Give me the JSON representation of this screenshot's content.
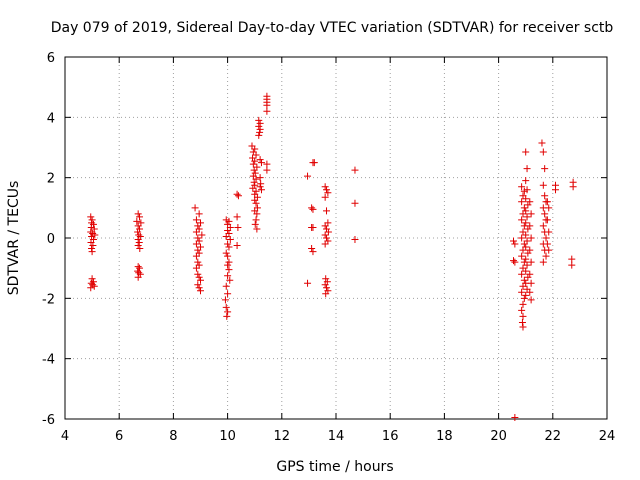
{
  "chart_data": {
    "type": "scatter",
    "title": "Day 079 of 2019, Sidereal Day-to-day VTEC variation (SDTVAR) for receiver sctb",
    "xlabel": "GPS time / hours",
    "ylabel": "SDTVAR / TECUs",
    "xlim": [
      4,
      24
    ],
    "ylim": [
      -6,
      6
    ],
    "xticks": [
      "4",
      "6",
      "8",
      "10",
      "12",
      "14",
      "16",
      "18",
      "20",
      "22",
      "24"
    ],
    "yticks": [
      "-6",
      "-4",
      "-2",
      "0",
      "2",
      "4",
      "6"
    ],
    "grid": true,
    "marker": "+",
    "color": "#e00000",
    "series": [
      {
        "name": "SDTVAR",
        "points": [
          [
            4.95,
            0.7
          ],
          [
            5.0,
            0.6
          ],
          [
            4.98,
            0.5
          ],
          [
            5.05,
            0.45
          ],
          [
            4.97,
            0.35
          ],
          [
            5.08,
            0.3
          ],
          [
            4.95,
            0.2
          ],
          [
            5.02,
            0.15
          ],
          [
            5.1,
            0.1
          ],
          [
            4.98,
            0.05
          ],
          [
            5.05,
            -0.05
          ],
          [
            4.96,
            -0.15
          ],
          [
            5.03,
            -0.25
          ],
          [
            4.98,
            -0.35
          ],
          [
            5.0,
            -0.45
          ],
          [
            5.0,
            -1.35
          ],
          [
            5.05,
            -1.45
          ],
          [
            4.97,
            -1.5
          ],
          [
            5.02,
            -1.55
          ],
          [
            5.08,
            -1.6
          ],
          [
            4.95,
            -1.65
          ],
          [
            6.7,
            0.8
          ],
          [
            6.75,
            0.7
          ],
          [
            6.65,
            0.55
          ],
          [
            6.8,
            0.5
          ],
          [
            6.7,
            0.4
          ],
          [
            6.75,
            0.3
          ],
          [
            6.68,
            0.2
          ],
          [
            6.72,
            0.1
          ],
          [
            6.78,
            0.05
          ],
          [
            6.7,
            -0.05
          ],
          [
            6.74,
            -0.15
          ],
          [
            6.7,
            -0.25
          ],
          [
            6.76,
            -0.35
          ],
          [
            6.7,
            -0.95
          ],
          [
            6.75,
            -1.0
          ],
          [
            6.68,
            -1.1
          ],
          [
            6.72,
            -1.15
          ],
          [
            6.78,
            -1.2
          ],
          [
            6.7,
            -1.3
          ],
          [
            8.8,
            1.0
          ],
          [
            8.95,
            0.8
          ],
          [
            8.85,
            0.6
          ],
          [
            9.0,
            0.5
          ],
          [
            8.9,
            0.4
          ],
          [
            8.95,
            0.3
          ],
          [
            8.85,
            0.2
          ],
          [
            9.05,
            0.1
          ],
          [
            8.9,
            0.0
          ],
          [
            8.95,
            -0.1
          ],
          [
            8.85,
            -0.2
          ],
          [
            9.0,
            -0.3
          ],
          [
            8.9,
            -0.4
          ],
          [
            8.95,
            -0.5
          ],
          [
            8.85,
            -0.6
          ],
          [
            8.9,
            -0.8
          ],
          [
            8.95,
            -0.9
          ],
          [
            8.85,
            -1.0
          ],
          [
            8.9,
            -1.2
          ],
          [
            8.95,
            -1.3
          ],
          [
            9.0,
            -1.4
          ],
          [
            8.9,
            -1.55
          ],
          [
            8.95,
            -1.65
          ],
          [
            9.0,
            -1.75
          ],
          [
            9.95,
            0.6
          ],
          [
            10.05,
            0.55
          ],
          [
            10.0,
            0.45
          ],
          [
            10.1,
            0.35
          ],
          [
            10.0,
            0.25
          ],
          [
            10.05,
            0.15
          ],
          [
            9.95,
            0.05
          ],
          [
            10.1,
            -0.05
          ],
          [
            10.0,
            -0.2
          ],
          [
            10.05,
            -0.3
          ],
          [
            9.95,
            -0.5
          ],
          [
            10.0,
            -0.6
          ],
          [
            10.05,
            -0.8
          ],
          [
            10.0,
            -0.9
          ],
          [
            10.05,
            -1.05
          ],
          [
            10.0,
            -1.25
          ],
          [
            10.08,
            -1.4
          ],
          [
            9.95,
            -1.6
          ],
          [
            10.0,
            -1.85
          ],
          [
            9.92,
            -2.05
          ],
          [
            9.95,
            -2.3
          ],
          [
            10.0,
            -2.45
          ],
          [
            9.97,
            -2.6
          ],
          [
            10.35,
            1.45
          ],
          [
            10.4,
            1.4
          ],
          [
            10.35,
            0.7
          ],
          [
            10.38,
            0.35
          ],
          [
            10.35,
            -0.25
          ],
          [
            10.9,
            3.05
          ],
          [
            11.0,
            2.95
          ],
          [
            10.95,
            2.85
          ],
          [
            11.05,
            2.75
          ],
          [
            10.92,
            2.65
          ],
          [
            11.0,
            2.55
          ],
          [
            10.95,
            2.45
          ],
          [
            11.08,
            2.35
          ],
          [
            10.98,
            2.25
          ],
          [
            11.02,
            2.15
          ],
          [
            10.95,
            2.05
          ],
          [
            11.05,
            1.95
          ],
          [
            10.98,
            1.85
          ],
          [
            11.0,
            1.75
          ],
          [
            10.93,
            1.65
          ],
          [
            11.05,
            1.55
          ],
          [
            11.0,
            1.45
          ],
          [
            11.1,
            1.35
          ],
          [
            11.0,
            1.25
          ],
          [
            11.05,
            1.15
          ],
          [
            11.1,
            1.0
          ],
          [
            11.0,
            0.9
          ],
          [
            11.08,
            0.8
          ],
          [
            11.05,
            0.6
          ],
          [
            11.02,
            0.45
          ],
          [
            11.08,
            0.3
          ],
          [
            11.15,
            3.9
          ],
          [
            11.2,
            3.8
          ],
          [
            11.15,
            3.7
          ],
          [
            11.2,
            3.6
          ],
          [
            11.18,
            3.5
          ],
          [
            11.15,
            3.4
          ],
          [
            11.2,
            2.6
          ],
          [
            11.25,
            2.5
          ],
          [
            11.2,
            2.0
          ],
          [
            11.22,
            1.8
          ],
          [
            11.2,
            1.7
          ],
          [
            11.25,
            1.6
          ],
          [
            11.45,
            4.7
          ],
          [
            11.45,
            4.6
          ],
          [
            11.45,
            4.5
          ],
          [
            11.45,
            4.4
          ],
          [
            11.45,
            4.2
          ],
          [
            11.45,
            2.45
          ],
          [
            11.45,
            2.25
          ],
          [
            12.95,
            2.05
          ],
          [
            13.15,
            2.5
          ],
          [
            13.2,
            2.5
          ],
          [
            13.1,
            1.0
          ],
          [
            13.15,
            0.95
          ],
          [
            13.1,
            0.35
          ],
          [
            13.15,
            0.35
          ],
          [
            13.1,
            -0.35
          ],
          [
            13.15,
            -0.45
          ],
          [
            12.95,
            -1.5
          ],
          [
            13.6,
            1.7
          ],
          [
            13.65,
            1.6
          ],
          [
            13.7,
            1.5
          ],
          [
            13.6,
            1.35
          ],
          [
            13.65,
            0.9
          ],
          [
            13.7,
            0.5
          ],
          [
            13.6,
            0.4
          ],
          [
            13.65,
            0.3
          ],
          [
            13.72,
            0.2
          ],
          [
            13.6,
            0.1
          ],
          [
            13.65,
            0.0
          ],
          [
            13.7,
            -0.1
          ],
          [
            13.6,
            -0.2
          ],
          [
            13.62,
            -1.35
          ],
          [
            13.68,
            -1.45
          ],
          [
            13.6,
            -1.55
          ],
          [
            13.65,
            -1.65
          ],
          [
            13.7,
            -1.75
          ],
          [
            13.62,
            -1.85
          ],
          [
            14.7,
            2.25
          ],
          [
            14.7,
            1.15
          ],
          [
            14.7,
            -0.05
          ],
          [
            20.55,
            -0.1
          ],
          [
            20.6,
            -0.2
          ],
          [
            20.55,
            -0.75
          ],
          [
            20.6,
            -0.8
          ],
          [
            20.6,
            -5.95
          ],
          [
            20.85,
            1.7
          ],
          [
            20.95,
            1.55
          ],
          [
            20.9,
            1.4
          ],
          [
            20.85,
            1.2
          ],
          [
            20.95,
            1.0
          ],
          [
            20.9,
            0.8
          ],
          [
            20.85,
            0.6
          ],
          [
            20.95,
            0.4
          ],
          [
            20.9,
            0.2
          ],
          [
            20.85,
            0.0
          ],
          [
            20.95,
            -0.2
          ],
          [
            20.9,
            -0.4
          ],
          [
            20.85,
            -0.6
          ],
          [
            20.95,
            -0.8
          ],
          [
            20.9,
            -1.0
          ],
          [
            20.85,
            -1.2
          ],
          [
            20.95,
            -1.4
          ],
          [
            20.9,
            -1.6
          ],
          [
            20.85,
            -1.8
          ],
          [
            20.95,
            -2.0
          ],
          [
            20.9,
            -2.2
          ],
          [
            20.85,
            -2.4
          ],
          [
            20.9,
            -2.6
          ],
          [
            20.88,
            -2.8
          ],
          [
            20.9,
            -2.95
          ],
          [
            21.0,
            2.85
          ],
          [
            21.05,
            2.3
          ],
          [
            21.0,
            1.9
          ],
          [
            21.05,
            1.6
          ],
          [
            21.0,
            1.3
          ],
          [
            21.08,
            1.1
          ],
          [
            21.0,
            0.9
          ],
          [
            21.05,
            0.7
          ],
          [
            21.0,
            0.5
          ],
          [
            21.08,
            0.3
          ],
          [
            21.0,
            0.1
          ],
          [
            21.05,
            -0.1
          ],
          [
            21.0,
            -0.3
          ],
          [
            21.08,
            -0.5
          ],
          [
            21.0,
            -0.7
          ],
          [
            21.05,
            -0.9
          ],
          [
            21.0,
            -1.1
          ],
          [
            21.08,
            -1.3
          ],
          [
            21.0,
            -1.5
          ],
          [
            21.05,
            -1.7
          ],
          [
            21.0,
            -1.9
          ],
          [
            21.15,
            1.2
          ],
          [
            21.2,
            0.8
          ],
          [
            21.15,
            0.4
          ],
          [
            21.2,
            0.0
          ],
          [
            21.15,
            -0.4
          ],
          [
            21.2,
            -0.8
          ],
          [
            21.15,
            -1.2
          ],
          [
            21.2,
            -1.5
          ],
          [
            21.15,
            -1.8
          ],
          [
            21.2,
            -2.05
          ],
          [
            21.6,
            3.15
          ],
          [
            21.65,
            2.85
          ],
          [
            21.7,
            2.3
          ],
          [
            21.65,
            1.75
          ],
          [
            21.7,
            1.4
          ],
          [
            21.75,
            1.2
          ],
          [
            21.65,
            1.0
          ],
          [
            21.7,
            0.8
          ],
          [
            21.75,
            0.6
          ],
          [
            21.65,
            0.4
          ],
          [
            21.7,
            0.2
          ],
          [
            21.75,
            0.0
          ],
          [
            21.65,
            -0.2
          ],
          [
            21.7,
            -0.4
          ],
          [
            21.75,
            -0.6
          ],
          [
            21.65,
            -0.8
          ],
          [
            21.8,
            1.2
          ],
          [
            21.85,
            1.0
          ],
          [
            21.8,
            0.6
          ],
          [
            21.85,
            0.2
          ],
          [
            21.8,
            -0.2
          ],
          [
            21.85,
            -0.4
          ],
          [
            22.1,
            1.75
          ],
          [
            22.1,
            1.6
          ],
          [
            22.75,
            1.85
          ],
          [
            22.75,
            1.7
          ],
          [
            22.7,
            -0.7
          ],
          [
            22.7,
            -0.9
          ]
        ]
      }
    ]
  }
}
